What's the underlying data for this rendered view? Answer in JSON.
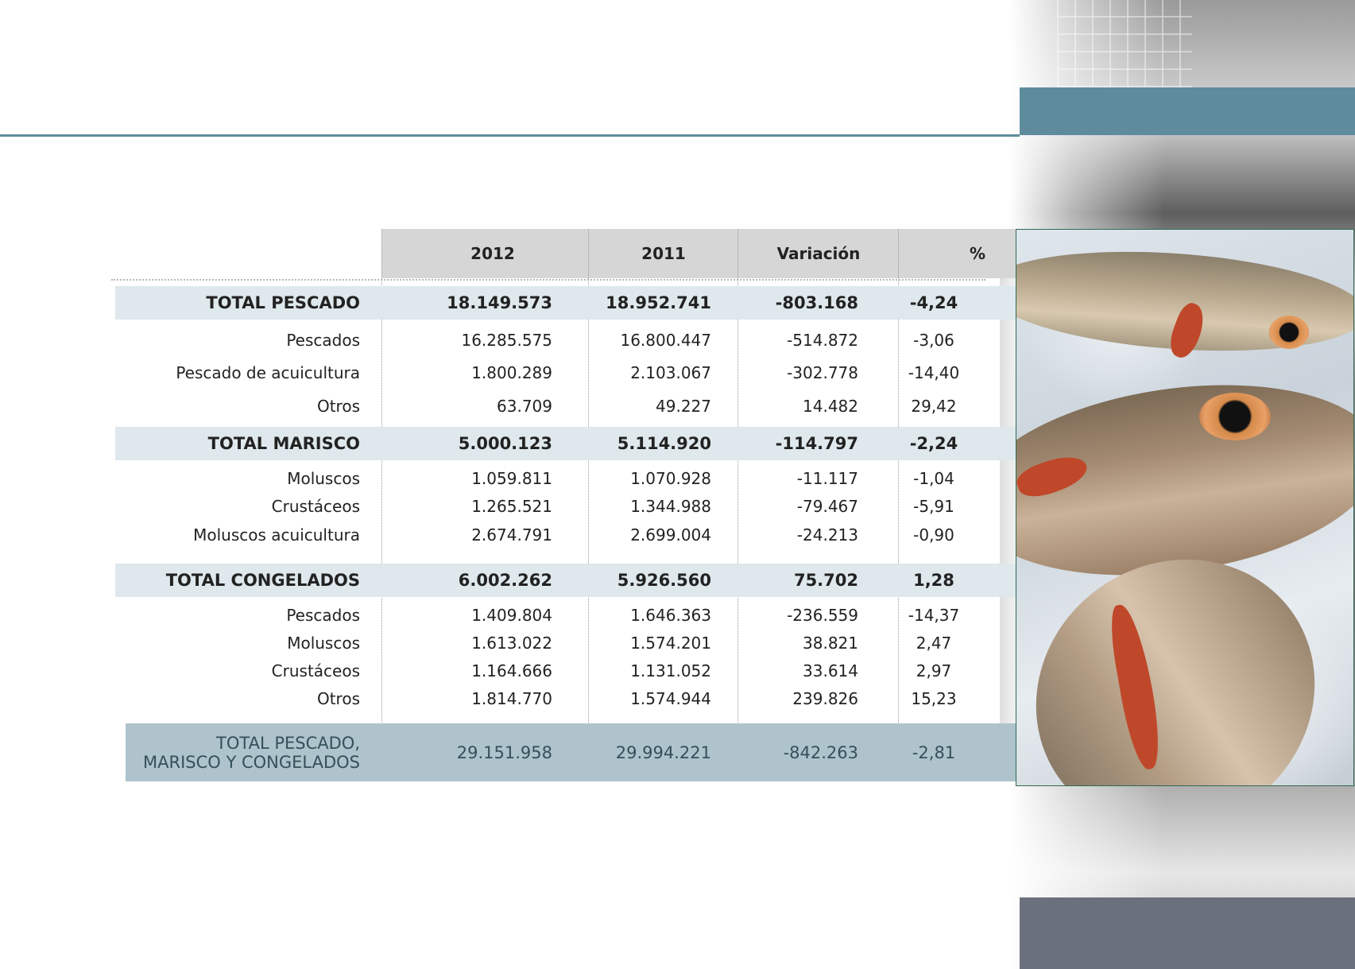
{
  "table": {
    "headers": [
      "2012",
      "2011",
      "Variación",
      "%"
    ],
    "rows": [
      {
        "label": "TOTAL PESCADO",
        "v2012": "18.149.573",
        "v2011": "18.952.741",
        "var": "-803.168",
        "pct": "-4,24",
        "type": "total"
      },
      {
        "label": "Pescados",
        "v2012": "16.285.575",
        "v2011": "16.800.447",
        "var": "-514.872",
        "pct": "-3,06",
        "type": "detail"
      },
      {
        "label": "Pescado de acuicultura",
        "v2012": "1.800.289",
        "v2011": "2.103.067",
        "var": "-302.778",
        "pct": "-14,40",
        "type": "detail"
      },
      {
        "label": "Otros",
        "v2012": "63.709",
        "v2011": "49.227",
        "var": "14.482",
        "pct": "29,42",
        "type": "detail"
      },
      {
        "label": "TOTAL MARISCO",
        "v2012": "5.000.123",
        "v2011": "5.114.920",
        "var": "-114.797",
        "pct": "-2,24",
        "type": "total"
      },
      {
        "label": "Moluscos",
        "v2012": "1.059.811",
        "v2011": "1.070.928",
        "var": "-11.117",
        "pct": "-1,04",
        "type": "detail"
      },
      {
        "label": "Crustáceos",
        "v2012": "1.265.521",
        "v2011": "1.344.988",
        "var": "-79.467",
        "pct": "-5,91",
        "type": "detail"
      },
      {
        "label": "Moluscos acuicultura",
        "v2012": "2.674.791",
        "v2011": "2.699.004",
        "var": "-24.213",
        "pct": "-0,90",
        "type": "detail"
      },
      {
        "label": "TOTAL CONGELADOS",
        "v2012": "6.002.262",
        "v2011": "5.926.560",
        "var": "75.702",
        "pct": "1,28",
        "type": "total"
      },
      {
        "label": "Pescados",
        "v2012": "1.409.804",
        "v2011": "1.646.363",
        "var": "-236.559",
        "pct": "-14,37",
        "type": "detail"
      },
      {
        "label": "Moluscos",
        "v2012": "1.613.022",
        "v2011": "1.574.201",
        "var": "38.821",
        "pct": "2,47",
        "type": "detail"
      },
      {
        "label": "Crustáceos",
        "v2012": "1.164.666",
        "v2011": "1.131.052",
        "var": "33.614",
        "pct": "2,97",
        "type": "detail"
      },
      {
        "label": "Otros",
        "v2012": "1.814.770",
        "v2011": "1.574.944",
        "var": "239.826",
        "pct": "15,23",
        "type": "detail"
      },
      {
        "label_line1": "TOTAL PESCADO,",
        "label_line2": "MARISCO Y CONGELADOS",
        "v2012": "29.151.958",
        "v2011": "29.994.221",
        "var": "-842.263",
        "pct": "-2,81",
        "type": "grand"
      }
    ]
  },
  "colors": {
    "accent_bar": "#5e8c9c",
    "footer_bar": "#6a707c",
    "total_row_bg": "#dfe8ec",
    "grand_total_bg": "#aec3cb",
    "header_bg": "#d6d6d6"
  }
}
